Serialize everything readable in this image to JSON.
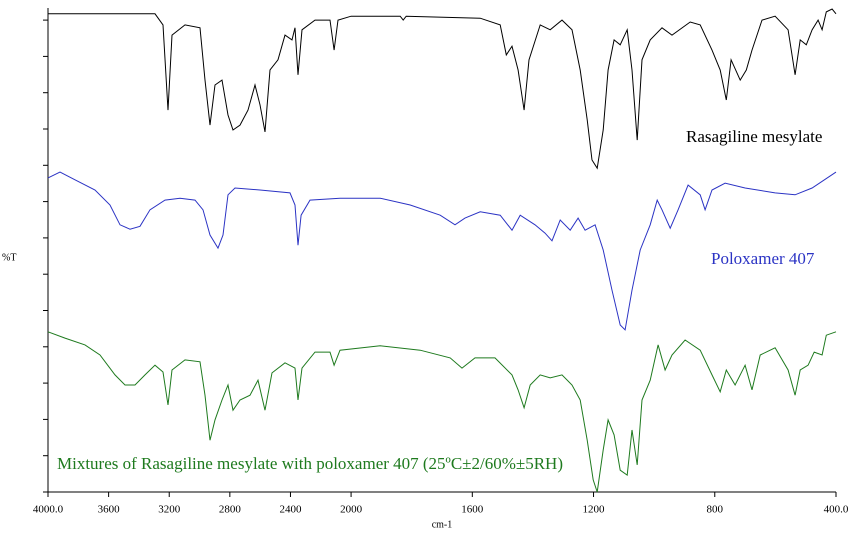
{
  "chart_data": {
    "type": "line",
    "ylabel": "%T",
    "xlabel": "cm-1",
    "xlim": [
      4000,
      400
    ],
    "x_scale_break": 2000,
    "x_scale_factor_below_break": 2,
    "xticks": [
      {
        "value": 4000,
        "label": "4000.0"
      },
      3600,
      3200,
      2800,
      2400,
      2000,
      1600,
      1200,
      800,
      {
        "value": 400,
        "label": "400.0"
      }
    ],
    "ylim": [
      0,
      100
    ],
    "yticks": [
      0,
      7.5,
      15,
      22.5,
      30,
      37.5,
      45,
      52.5,
      60,
      67.5,
      75,
      82.5,
      90,
      97.5
    ],
    "series": [
      {
        "name": "Rasagiline mesylate",
        "color": "#000000",
        "x": [
          4000,
          3294,
          3241,
          3208,
          3182,
          3096,
          2997,
          2964,
          2931,
          2898,
          2852,
          2812,
          2779,
          2733,
          2680,
          2634,
          2601,
          2568,
          2535,
          2482,
          2436,
          2390,
          2370,
          2350,
          2324,
          2238,
          2139,
          2112,
          2086,
          2000,
          1838,
          1828,
          1818,
          1574,
          1508,
          1488,
          1469,
          1449,
          1429,
          1413,
          1376,
          1343,
          1304,
          1271,
          1244,
          1221,
          1205,
          1188,
          1168,
          1152,
          1132,
          1112,
          1089,
          1073,
          1056,
          1040,
          1013,
          974,
          941,
          881,
          848,
          809,
          782,
          762,
          746,
          716,
          696,
          677,
          644,
          601,
          558,
          535,
          518,
          498,
          479,
          459,
          446,
          432,
          413,
          400
        ],
        "values": [
          98.8,
          98.8,
          96.5,
          78.9,
          94.4,
          96.5,
          95.9,
          85.1,
          75.8,
          84.1,
          85.1,
          77.9,
          74.8,
          75.8,
          78.9,
          84.1,
          80.0,
          74.4,
          87.2,
          89.3,
          94.4,
          93.4,
          95.9,
          86.2,
          95.5,
          97.5,
          97.5,
          91.3,
          97.5,
          98.3,
          98.3,
          97.5,
          98.3,
          97.9,
          96.5,
          90.3,
          92.1,
          87.2,
          78.9,
          89.3,
          96.5,
          95.5,
          97.5,
          95.5,
          87.2,
          76.9,
          68.6,
          66.9,
          74.8,
          87.2,
          93.4,
          92.4,
          95.5,
          87.2,
          72.7,
          89.3,
          93.4,
          95.9,
          94.4,
          97.1,
          96.5,
          91.3,
          87.2,
          81.0,
          89.3,
          85.1,
          87.2,
          91.3,
          97.5,
          98.3,
          95.5,
          86.2,
          93.4,
          92.4,
          95.5,
          97.5,
          95.5,
          99.2,
          99.8,
          98.8
        ]
      },
      {
        "name": "Poloxamer 407",
        "color": "#2b33c4",
        "x": [
          4000,
          3921,
          3822,
          3690,
          3591,
          3525,
          3459,
          3393,
          3327,
          3228,
          3129,
          3030,
          2977,
          2931,
          2878,
          2845,
          2812,
          2766,
          2601,
          2403,
          2370,
          2350,
          2330,
          2271,
          2073,
          1904,
          1805,
          1706,
          1657,
          1624,
          1574,
          1508,
          1469,
          1442,
          1393,
          1360,
          1337,
          1310,
          1277,
          1251,
          1228,
          1195,
          1168,
          1139,
          1112,
          1096,
          1073,
          1046,
          1013,
          990,
          974,
          947,
          921,
          888,
          848,
          832,
          809,
          766,
          700,
          601,
          535,
          479,
          400
        ],
        "values": [
          64.9,
          66.1,
          64.5,
          62.4,
          59.3,
          55.2,
          54.3,
          54.9,
          58.3,
          60.3,
          60.7,
          60.3,
          58.3,
          53.1,
          50.4,
          53.1,
          61.4,
          62.8,
          62.4,
          61.8,
          59.3,
          51.0,
          57.2,
          60.3,
          60.7,
          60.7,
          59.3,
          57.2,
          55.2,
          56.6,
          57.9,
          57.2,
          54.1,
          57.2,
          55.2,
          53.5,
          51.9,
          56.2,
          54.1,
          56.6,
          54.1,
          55.2,
          50.0,
          41.7,
          34.5,
          33.5,
          41.7,
          50.0,
          55.2,
          60.3,
          58.3,
          54.5,
          58.3,
          63.4,
          61.4,
          58.3,
          62.4,
          63.8,
          62.8,
          61.8,
          61.4,
          62.8,
          66.1
        ]
      },
      {
        "name": "Mixtures of Rasagiline mesylate with poloxamer 407 (25ºC±2/60%±5RH)",
        "color": "#1e7a1e",
        "x": [
          4000,
          3888,
          3756,
          3657,
          3558,
          3492,
          3426,
          3360,
          3294,
          3241,
          3208,
          3182,
          3096,
          2997,
          2964,
          2931,
          2898,
          2852,
          2812,
          2779,
          2733,
          2667,
          2614,
          2568,
          2522,
          2436,
          2370,
          2350,
          2324,
          2238,
          2139,
          2112,
          2073,
          1904,
          1772,
          1673,
          1634,
          1591,
          1525,
          1469,
          1449,
          1429,
          1409,
          1376,
          1343,
          1304,
          1271,
          1244,
          1221,
          1201,
          1188,
          1168,
          1152,
          1132,
          1112,
          1089,
          1073,
          1056,
          1040,
          1013,
          987,
          964,
          941,
          898,
          848,
          809,
          782,
          762,
          733,
          700,
          677,
          650,
          601,
          558,
          535,
          518,
          492,
          472,
          446,
          432,
          400
        ],
        "values": [
          33.1,
          31.8,
          30.4,
          28.3,
          24.2,
          22.1,
          22.1,
          24.2,
          26.2,
          24.8,
          18.0,
          25.2,
          27.3,
          26.9,
          20.0,
          10.7,
          14.9,
          19.0,
          22.1,
          16.9,
          19.0,
          20.0,
          23.1,
          16.9,
          24.6,
          26.7,
          25.6,
          19.0,
          25.6,
          28.9,
          28.9,
          26.2,
          29.3,
          30.2,
          29.3,
          27.7,
          25.6,
          27.7,
          27.7,
          24.2,
          21.1,
          17.4,
          22.1,
          24.2,
          23.6,
          24.2,
          22.1,
          19.0,
          10.7,
          2.5,
          0.0,
          8.7,
          14.9,
          11.8,
          4.5,
          3.5,
          12.8,
          5.6,
          19.0,
          23.1,
          30.4,
          25.2,
          28.3,
          31.4,
          29.3,
          24.2,
          20.7,
          25.2,
          22.1,
          26.2,
          21.1,
          28.3,
          29.8,
          25.2,
          20.0,
          25.2,
          26.2,
          28.9,
          28.3,
          32.4,
          33.1
        ]
      }
    ]
  }
}
